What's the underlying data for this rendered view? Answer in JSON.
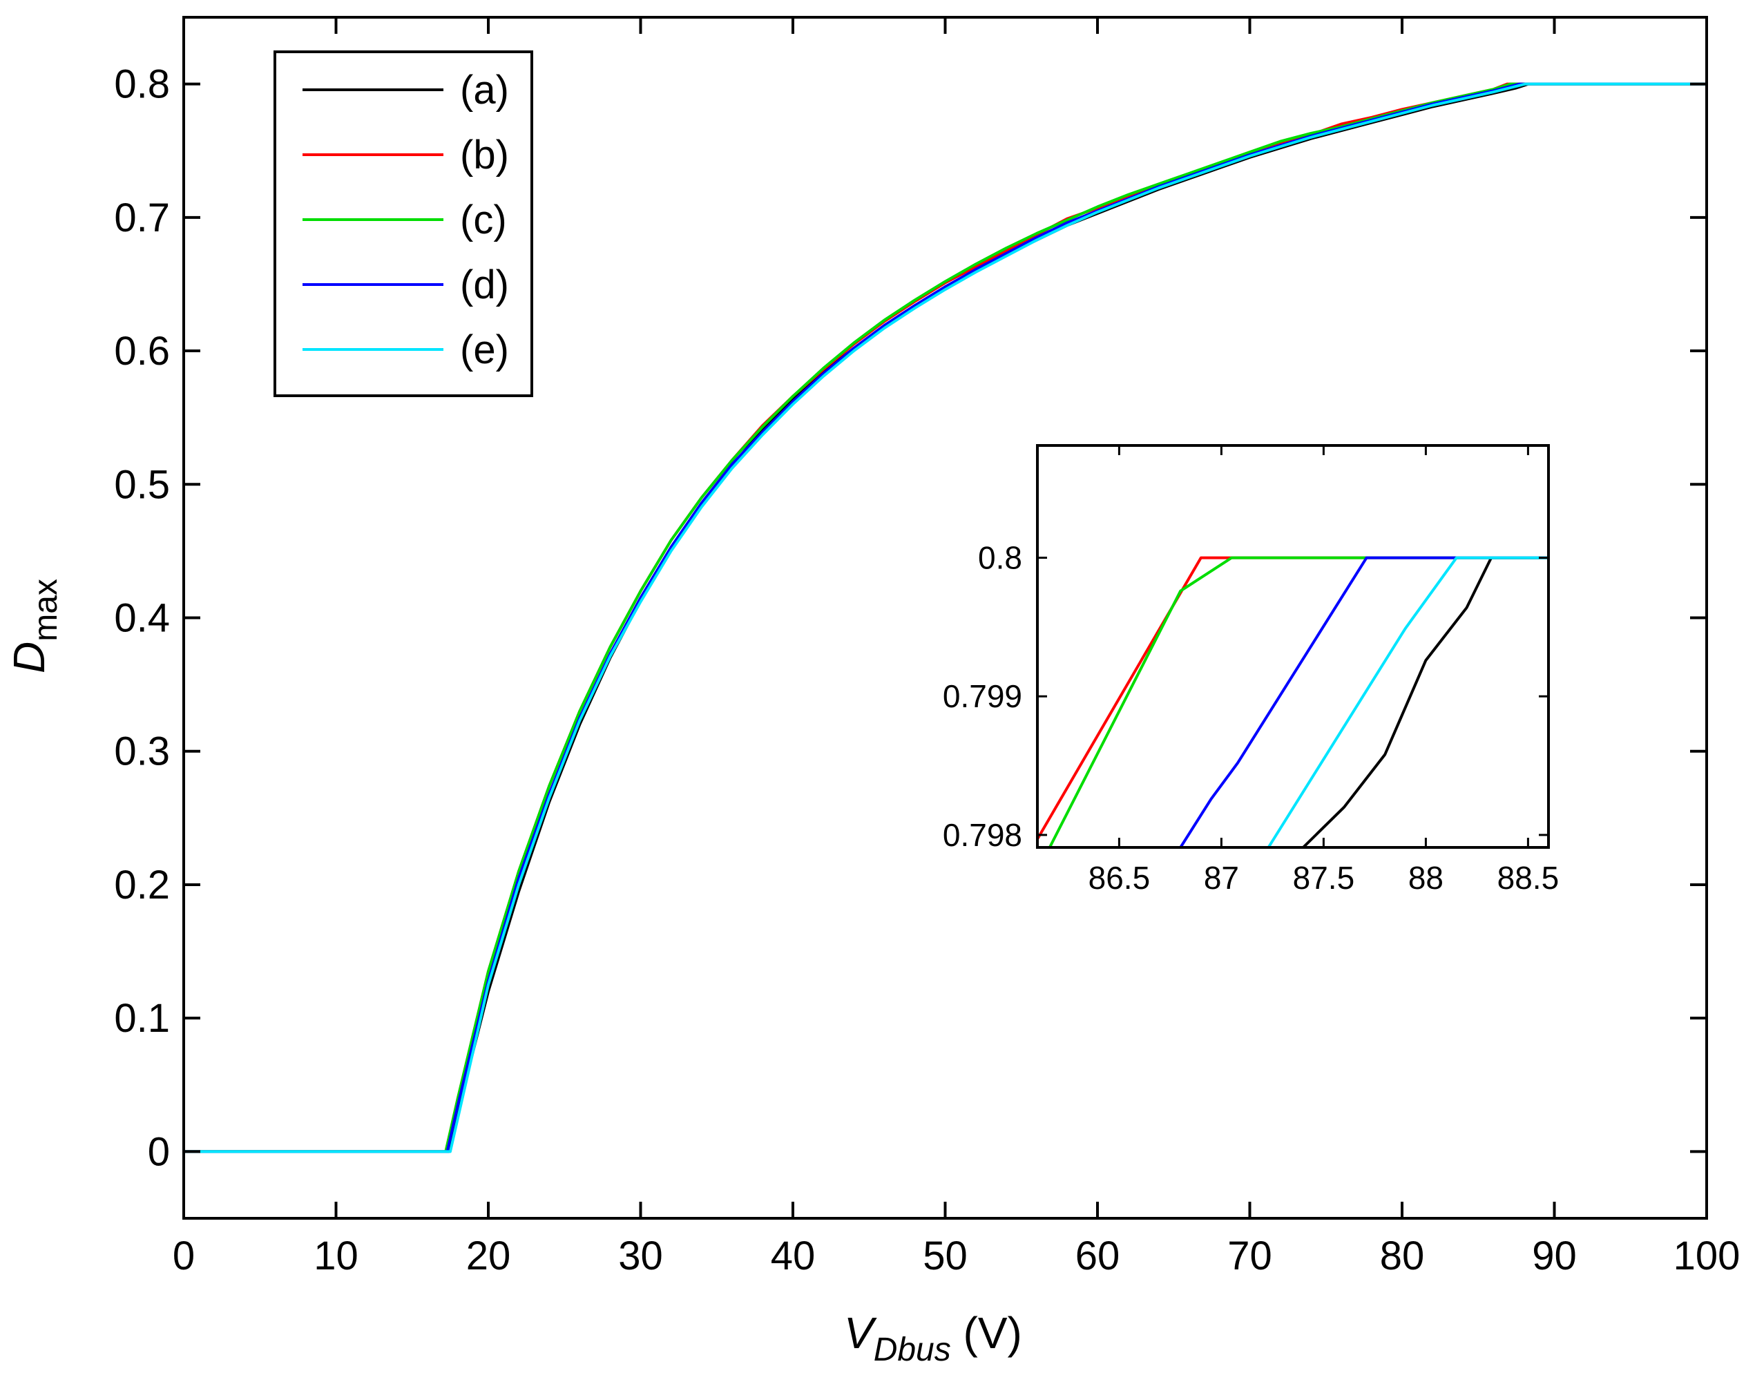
{
  "chart_data": {
    "type": "line",
    "title": "",
    "xlabel": {
      "main": "V",
      "subscript": "Dbus",
      "unit": " (V)"
    },
    "ylabel": {
      "main": "D",
      "subscript": "max"
    },
    "xlim": [
      0,
      100
    ],
    "ylim": [
      -0.05,
      0.85
    ],
    "xticks": [
      0,
      10,
      20,
      30,
      40,
      50,
      60,
      70,
      80,
      90,
      100
    ],
    "xtick_labels": [
      "0",
      "10",
      "20",
      "30",
      "40",
      "50",
      "60",
      "70",
      "80",
      "90",
      "100"
    ],
    "yticks": [
      0,
      0.1,
      0.2,
      0.3,
      0.4,
      0.5,
      0.6,
      0.7,
      0.8
    ],
    "ytick_labels": [
      "0",
      "0.1",
      "0.2",
      "0.3",
      "0.4",
      "0.5",
      "0.6",
      "0.7",
      "0.8"
    ],
    "grid": false,
    "legend_position": "top-left",
    "series": [
      {
        "name": "(a)",
        "color": "#000000",
        "x": [
          0,
          17.4,
          18,
          20,
          22,
          24,
          26,
          28,
          30,
          32,
          34,
          36,
          38,
          40,
          42,
          44,
          46,
          48,
          50,
          52,
          54,
          56,
          58,
          60,
          62,
          64,
          66,
          68,
          70,
          72,
          74,
          76,
          78,
          80,
          82,
          84,
          86,
          87.5,
          88.3,
          100
        ],
        "y": [
          0,
          0,
          0.03,
          0.12,
          0.195,
          0.262,
          0.32,
          0.37,
          0.413,
          0.452,
          0.485,
          0.514,
          0.541,
          0.564,
          0.584,
          0.602,
          0.619,
          0.634,
          0.648,
          0.66,
          0.672,
          0.683,
          0.694,
          0.703,
          0.712,
          0.721,
          0.729,
          0.737,
          0.745,
          0.752,
          0.759,
          0.765,
          0.771,
          0.777,
          0.783,
          0.788,
          0.793,
          0.797,
          0.8,
          0.8
        ]
      },
      {
        "name": "(b)",
        "color": "#ff0000",
        "x": [
          0,
          17.2,
          18,
          20,
          22,
          24,
          26,
          28,
          30,
          32,
          34,
          36,
          38,
          40,
          42,
          44,
          46,
          48,
          50,
          52,
          54,
          56,
          58,
          60,
          62,
          64,
          66,
          68,
          70,
          72,
          74,
          76,
          78,
          80,
          82,
          84,
          86,
          86.9,
          100
        ],
        "y": [
          0,
          0,
          0.04,
          0.135,
          0.21,
          0.274,
          0.33,
          0.378,
          0.42,
          0.458,
          0.49,
          0.518,
          0.544,
          0.566,
          0.586,
          0.605,
          0.622,
          0.637,
          0.651,
          0.663,
          0.675,
          0.687,
          0.699,
          0.707,
          0.716,
          0.724,
          0.732,
          0.74,
          0.748,
          0.755,
          0.762,
          0.77,
          0.775,
          0.781,
          0.786,
          0.791,
          0.796,
          0.8,
          0.8
        ]
      },
      {
        "name": "(c)",
        "color": "#00dd00",
        "x": [
          0,
          17.2,
          18,
          20,
          22,
          24,
          26,
          28,
          30,
          32,
          34,
          36,
          38,
          40,
          42,
          44,
          46,
          48,
          50,
          52,
          54,
          56,
          58,
          60,
          62,
          64,
          66,
          68,
          70,
          72,
          74,
          76,
          78,
          80,
          82,
          84,
          86,
          87.1,
          100
        ],
        "y": [
          0,
          0,
          0.04,
          0.135,
          0.21,
          0.274,
          0.33,
          0.378,
          0.42,
          0.458,
          0.49,
          0.518,
          0.543,
          0.566,
          0.587,
          0.606,
          0.623,
          0.638,
          0.652,
          0.665,
          0.677,
          0.688,
          0.698,
          0.708,
          0.717,
          0.725,
          0.733,
          0.741,
          0.749,
          0.757,
          0.763,
          0.768,
          0.774,
          0.78,
          0.786,
          0.791,
          0.796,
          0.8,
          0.8
        ]
      },
      {
        "name": "(d)",
        "color": "#0000ff",
        "x": [
          0,
          17.3,
          18,
          20,
          22,
          24,
          26,
          28,
          30,
          32,
          34,
          36,
          38,
          40,
          42,
          44,
          46,
          48,
          50,
          52,
          54,
          56,
          58,
          60,
          62,
          64,
          66,
          68,
          70,
          72,
          74,
          76,
          78,
          80,
          82,
          84,
          86,
          87.7,
          100
        ],
        "y": [
          0,
          0,
          0.035,
          0.128,
          0.205,
          0.268,
          0.325,
          0.373,
          0.415,
          0.453,
          0.486,
          0.515,
          0.539,
          0.562,
          0.583,
          0.602,
          0.619,
          0.634,
          0.648,
          0.661,
          0.673,
          0.685,
          0.696,
          0.705,
          0.714,
          0.723,
          0.731,
          0.739,
          0.747,
          0.754,
          0.761,
          0.767,
          0.773,
          0.779,
          0.785,
          0.79,
          0.795,
          0.8,
          0.8
        ]
      },
      {
        "name": "(e)",
        "color": "#00e5ff",
        "x": [
          0,
          17.5,
          18,
          20,
          22,
          24,
          26,
          28,
          30,
          32,
          34,
          36,
          38,
          40,
          42,
          44,
          46,
          48,
          50,
          52,
          54,
          56,
          58,
          60,
          62,
          64,
          66,
          68,
          70,
          72,
          74,
          76,
          78,
          80,
          82,
          84,
          86,
          88.1,
          100
        ],
        "y": [
          0,
          0,
          0.025,
          0.125,
          0.2,
          0.265,
          0.323,
          0.371,
          0.412,
          0.45,
          0.483,
          0.512,
          0.537,
          0.56,
          0.581,
          0.6,
          0.617,
          0.632,
          0.646,
          0.659,
          0.671,
          0.683,
          0.694,
          0.704,
          0.713,
          0.722,
          0.73,
          0.738,
          0.746,
          0.753,
          0.76,
          0.766,
          0.772,
          0.778,
          0.784,
          0.789,
          0.794,
          0.8,
          0.8
        ]
      }
    ],
    "inset": {
      "xlim": [
        86.1,
        88.6
      ],
      "ylim": [
        0.79791,
        0.80081
      ],
      "xticks": [
        86.5,
        87,
        87.5,
        88,
        88.5
      ],
      "xtick_labels": [
        "86.5",
        "87",
        "87.5",
        "88",
        "88.5"
      ],
      "yticks": [
        0.798,
        0.799,
        0.8
      ],
      "ytick_labels": [
        "0.798",
        "0.799",
        "0.8"
      ],
      "series": [
        {
          "name": "(a)",
          "color": "#000000",
          "x": [
            87.4,
            87.6,
            87.8,
            88.0,
            88.2,
            88.32,
            88.6
          ],
          "y": [
            0.79791,
            0.7982,
            0.79858,
            0.79926,
            0.79964,
            0.8,
            0.8
          ]
        },
        {
          "name": "(b)",
          "color": "#ff0000",
          "x": [
            86.1,
            86.9,
            88.6
          ],
          "y": [
            0.79797,
            0.8,
            0.8
          ]
        },
        {
          "name": "(c)",
          "color": "#00dd00",
          "x": [
            86.16,
            86.8,
            87.05,
            88.6
          ],
          "y": [
            0.79791,
            0.79976,
            0.8,
            0.8
          ]
        },
        {
          "name": "(d)",
          "color": "#0000ff",
          "x": [
            86.8,
            86.95,
            87.08,
            87.71,
            88.6
          ],
          "y": [
            0.79791,
            0.79826,
            0.79852,
            0.8,
            0.8
          ]
        },
        {
          "name": "(e)",
          "color": "#00e5ff",
          "x": [
            87.23,
            87.9,
            88.15,
            88.6
          ],
          "y": [
            0.79791,
            0.79949,
            0.8,
            0.8
          ]
        }
      ]
    }
  }
}
